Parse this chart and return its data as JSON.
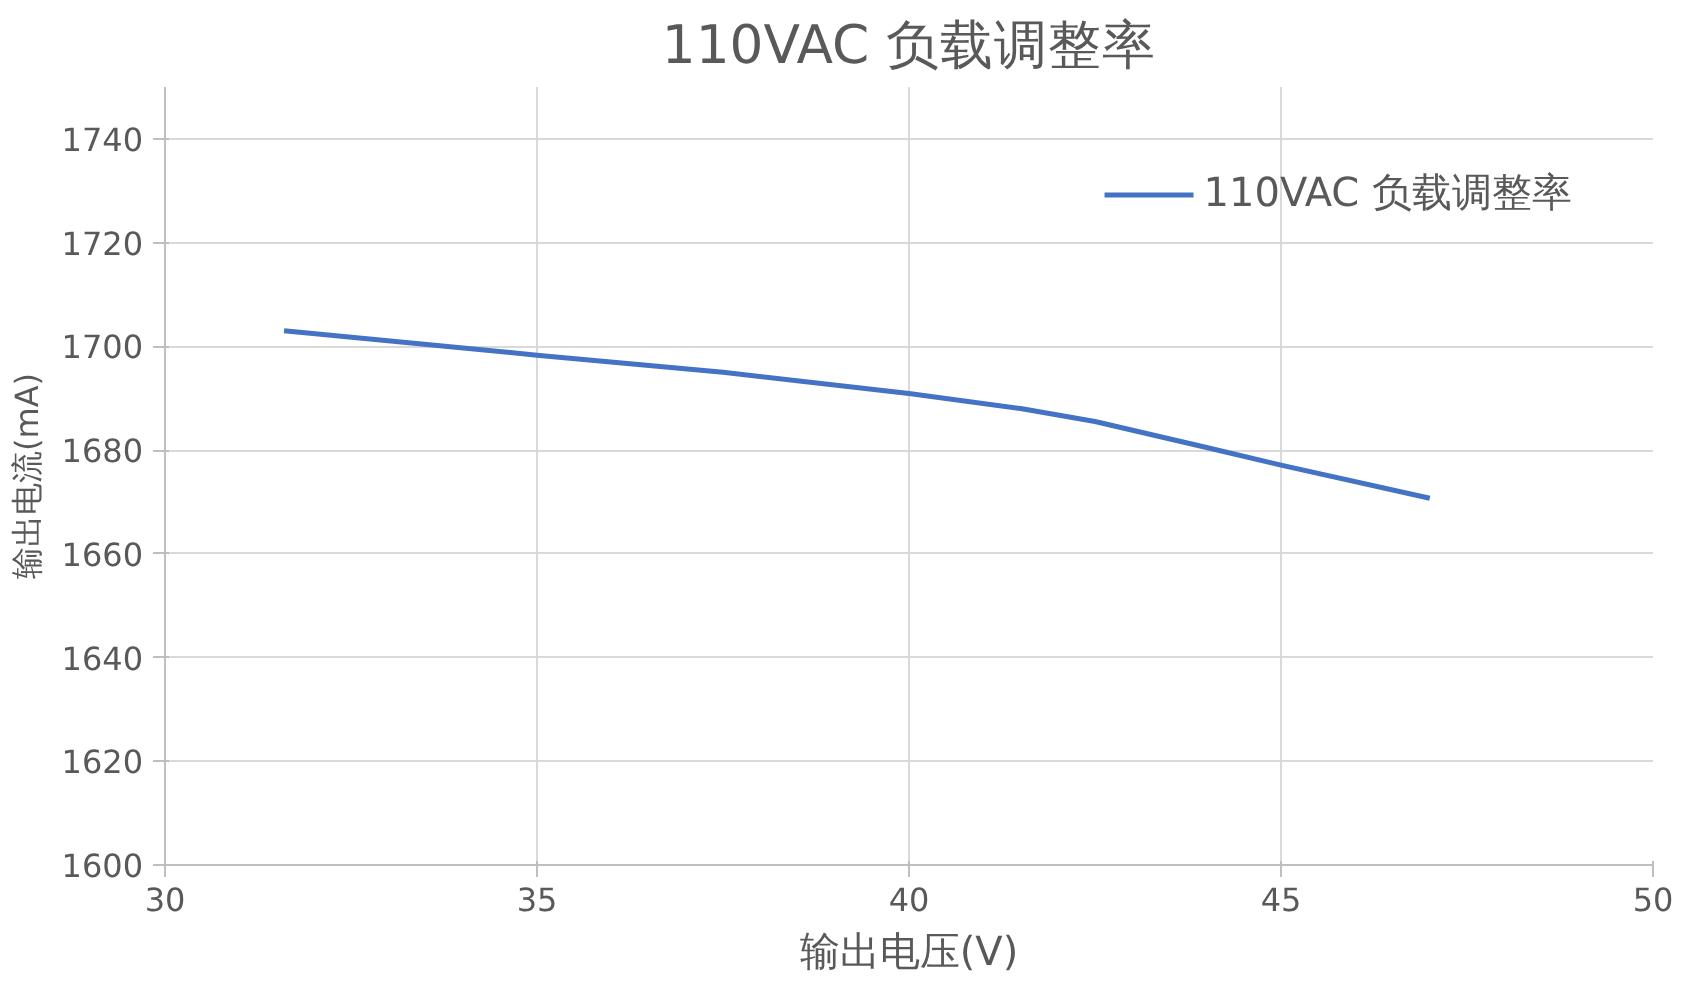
{
  "chart_data": {
    "type": "line",
    "title": "110VAC 负载调整率",
    "xlabel": "输出电压(V)",
    "ylabel": "输出电流(mA)",
    "series": [
      {
        "name": "110VAC 负载调整率",
        "color": "#4472c4",
        "x": [
          31.6,
          35,
          37.5,
          40,
          41.5,
          42.5,
          44,
          45,
          47
        ],
        "values": [
          1703,
          1698.3,
          1695,
          1690.9,
          1688,
          1685.5,
          1680.5,
          1677.1,
          1670.7
        ]
      }
    ],
    "xlim": [
      30,
      50
    ],
    "xticks": [
      30,
      35,
      40,
      45,
      50
    ],
    "ylim": [
      1600,
      1750
    ],
    "yticks": [
      1600,
      1620,
      1640,
      1660,
      1680,
      1700,
      1720,
      1740
    ],
    "grid": true,
    "legend": "top right",
    "line_style": "solid",
    "marker": "none"
  }
}
